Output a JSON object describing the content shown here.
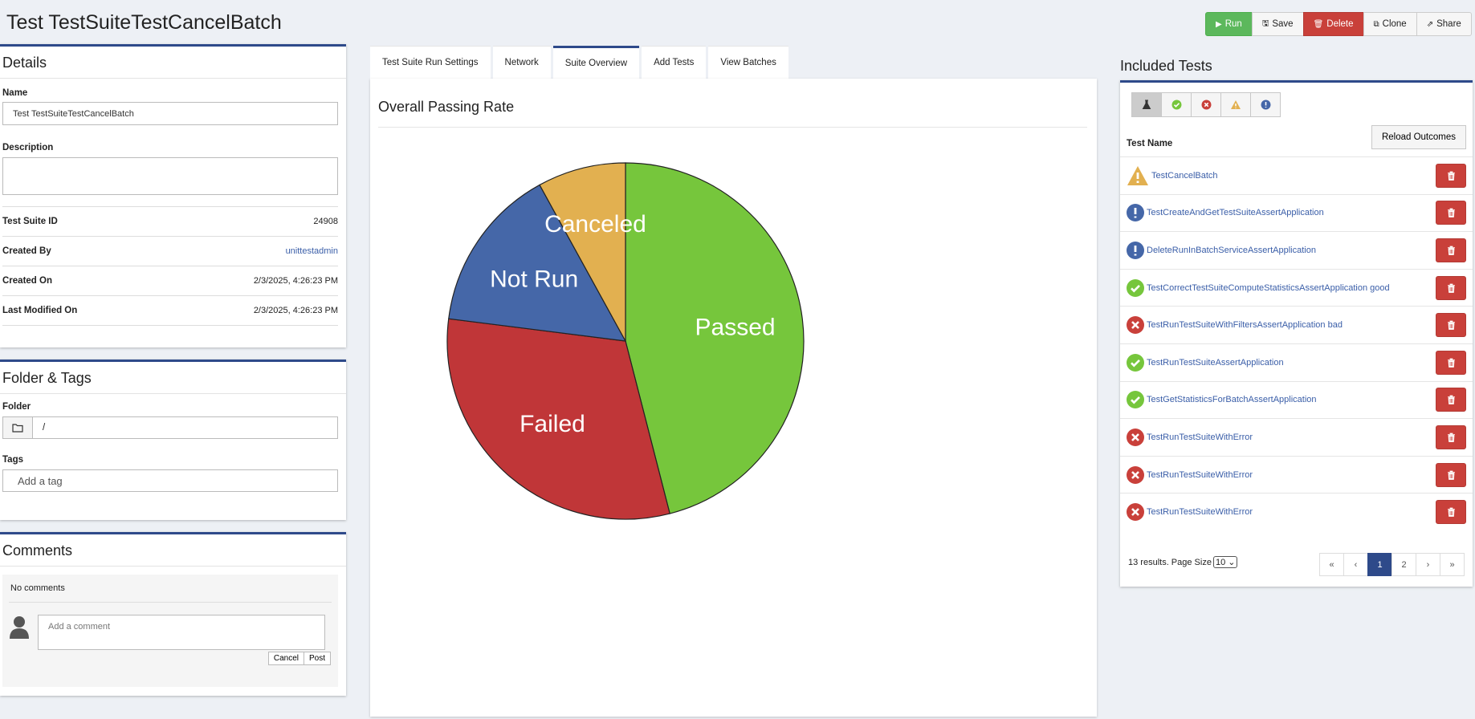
{
  "page": {
    "title": "Test TestSuiteTestCancelBatch"
  },
  "toolbar": {
    "run": "Run",
    "save": "Save",
    "delete": "Delete",
    "clone": "Clone",
    "share": "Share"
  },
  "details": {
    "title": "Details",
    "name_label": "Name",
    "name_value": "Test TestSuiteTestCancelBatch",
    "description_label": "Description",
    "description_value": "",
    "fields": [
      {
        "label": "Test Suite ID",
        "value": "24908"
      },
      {
        "label": "Created By",
        "value": "unittestadmin"
      },
      {
        "label": "Created On",
        "value": "2/3/2025, 4:26:23 PM"
      },
      {
        "label": "Last Modified On",
        "value": "2/3/2025, 4:26:23 PM"
      }
    ]
  },
  "folder_tags": {
    "title": "Folder & Tags",
    "folder_label": "Folder",
    "folder_value": "/",
    "tags_label": "Tags",
    "tags_placeholder": "Add a tag"
  },
  "comments": {
    "title": "Comments",
    "empty_text": "No comments",
    "placeholder": "Add a comment",
    "cancel": "Cancel",
    "post": "Post"
  },
  "tabs": [
    {
      "label": "Test Suite Run Settings"
    },
    {
      "label": "Network"
    },
    {
      "label": "Suite Overview"
    },
    {
      "label": "Add Tests"
    },
    {
      "label": "View Batches"
    }
  ],
  "overview": {
    "title": "Overall Passing Rate"
  },
  "chart_data": {
    "type": "pie",
    "title": "Overall Passing Rate",
    "slices": [
      {
        "label": "Passed",
        "value": 46,
        "color": "#76c63c"
      },
      {
        "label": "Failed",
        "value": 31,
        "color": "#c03638"
      },
      {
        "label": "Not Run",
        "value": 15,
        "color": "#4567a8"
      },
      {
        "label": "Canceled",
        "value": 8,
        "color": "#e2b050"
      }
    ]
  },
  "included": {
    "title": "Included Tests",
    "reload": "Reload Outcomes",
    "col_header": "Test Name",
    "tests": [
      {
        "name": "TestCancelBatch",
        "status": "canceled"
      },
      {
        "name": "TestCreateAndGetTestSuiteAssertApplication",
        "status": "notrun"
      },
      {
        "name": "DeleteRunInBatchServiceAssertApplication",
        "status": "notrun"
      },
      {
        "name": "TestCorrectTestSuiteComputeStatisticsAssertApplication good",
        "status": "passed"
      },
      {
        "name": "TestRunTestSuiteWithFiltersAssertApplication bad",
        "status": "failed"
      },
      {
        "name": "TestRunTestSuiteAssertApplication",
        "status": "passed"
      },
      {
        "name": "TestGetStatisticsForBatchAssertApplication",
        "status": "passed"
      },
      {
        "name": "TestRunTestSuiteWithError",
        "status": "failed"
      },
      {
        "name": "TestRunTestSuiteWithError",
        "status": "failed"
      },
      {
        "name": "TestRunTestSuiteWithError",
        "status": "failed"
      }
    ],
    "results_text": "13 results. Page Size",
    "page_size": "10",
    "pager": [
      "«",
      "‹",
      "1",
      "2",
      "›",
      "»"
    ],
    "current_page": "1"
  },
  "colors": {
    "accent": "#2e4a8a",
    "passed": "#76c63c",
    "failed": "#c9403a",
    "warning": "#e2b050",
    "notrun": "#4567a8"
  }
}
